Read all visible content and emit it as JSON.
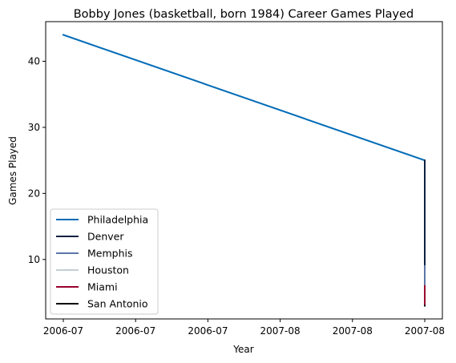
{
  "chart_data": {
    "type": "line",
    "title": "Bobby Jones (basketball, born 1984) Career Games Played",
    "xlabel": "Year",
    "ylabel": "Games Played",
    "x_ticks": [
      "2006-07",
      "2006-07",
      "2006-07",
      "2007-08",
      "2007-08",
      "2007-08"
    ],
    "y_ticks": [
      10,
      20,
      30,
      40
    ],
    "xlim": [
      0,
      1
    ],
    "ylim": [
      1,
      46
    ],
    "grid": false,
    "legend_position": "lower-left",
    "series": [
      {
        "name": "Philadelphia",
        "color": "#006bb6",
        "x": [
          0,
          1
        ],
        "y": [
          44,
          25
        ]
      },
      {
        "name": "Denver",
        "color": "#0e2240",
        "x": [
          1,
          1
        ],
        "y": [
          25,
          9
        ]
      },
      {
        "name": "Memphis",
        "color": "#5d76a9",
        "x": [
          1,
          1
        ],
        "y": [
          9,
          6
        ]
      },
      {
        "name": "Houston",
        "color": "#c4ced4",
        "x": [
          1,
          1
        ],
        "y": [
          6,
          6
        ]
      },
      {
        "name": "Miami",
        "color": "#98002e",
        "x": [
          1,
          1
        ],
        "y": [
          6,
          3
        ]
      },
      {
        "name": "San Antonio",
        "color": "#000000",
        "x": [
          1,
          1
        ],
        "y": [
          3,
          3
        ]
      }
    ]
  }
}
